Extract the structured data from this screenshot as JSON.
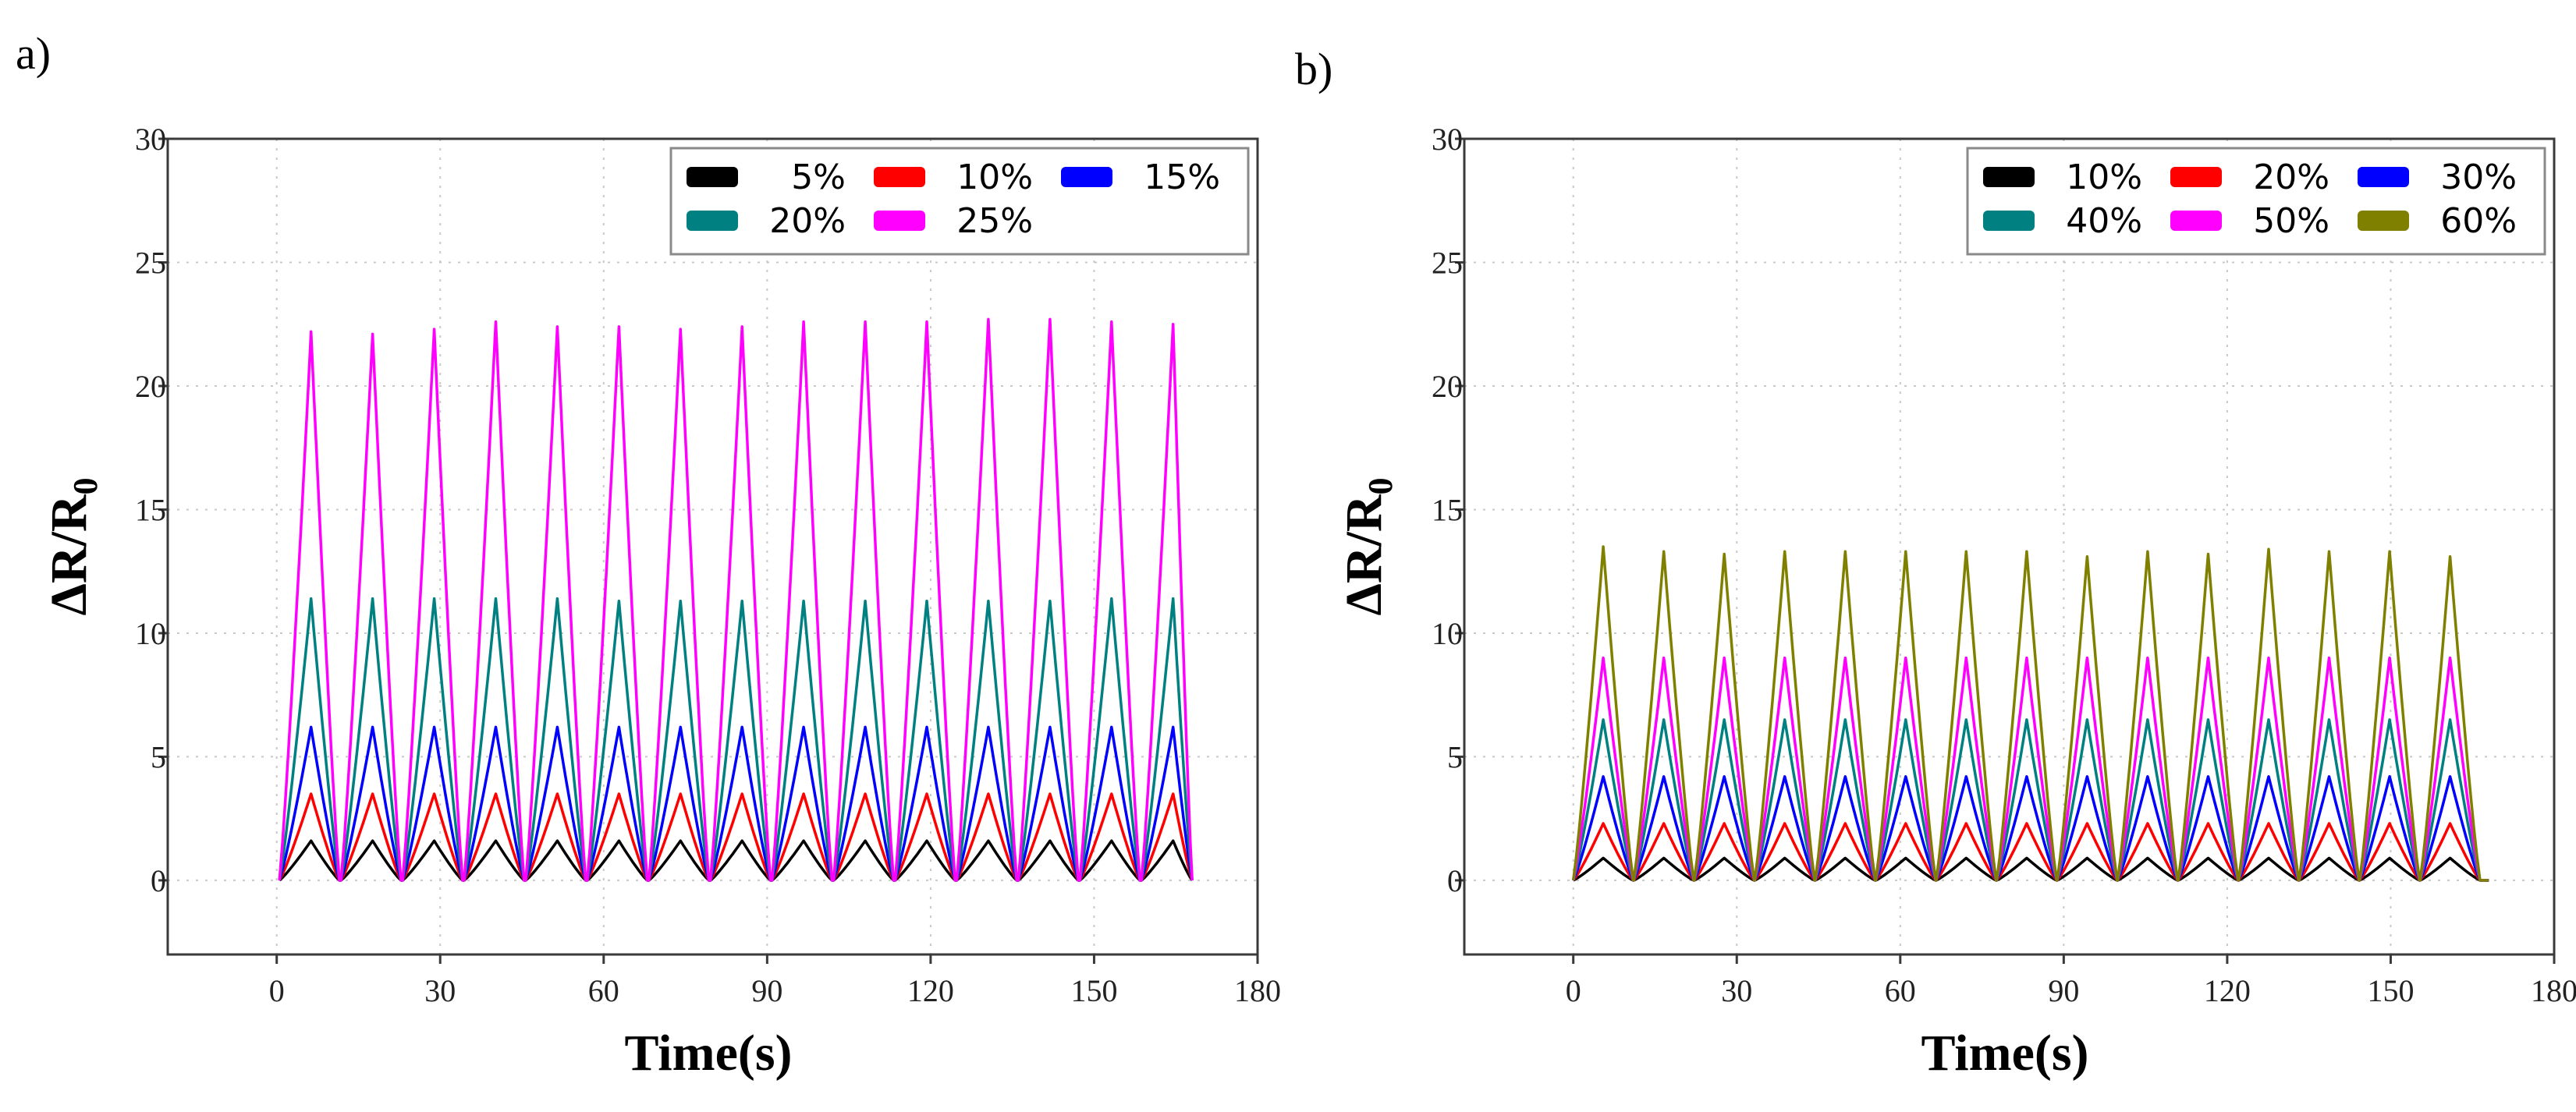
{
  "chart_data": [
    {
      "panel_label": "a)",
      "type": "line",
      "title": "",
      "xlabel": "Time(s)",
      "ylabel_main": "ΔR/R",
      "ylabel_sub": "0",
      "xlim": [
        -20,
        180
      ],
      "ylim": [
        -3,
        30
      ],
      "xticks": [
        0,
        30,
        60,
        90,
        120,
        150,
        180
      ],
      "yticks": [
        0,
        5,
        10,
        15,
        20,
        25,
        30
      ],
      "grid": true,
      "legend_position": "top-right",
      "legend_columns": 3,
      "cycle": {
        "start": 0.5,
        "period": 11.3,
        "count": 15,
        "peak_at": 5.8,
        "zero_until": 11.0,
        "end": 168
      },
      "series": [
        {
          "name": "5%",
          "color": "#000000",
          "peak": 1.6,
          "peaks": [
            1.6,
            1.6,
            1.6,
            1.6,
            1.6,
            1.6,
            1.6,
            1.6,
            1.6,
            1.6,
            1.6,
            1.6,
            1.6,
            1.6,
            1.6
          ]
        },
        {
          "name": "10%",
          "color": "#ff0000",
          "peak": 3.5,
          "peaks": [
            3.5,
            3.5,
            3.5,
            3.5,
            3.5,
            3.5,
            3.5,
            3.5,
            3.5,
            3.5,
            3.5,
            3.5,
            3.5,
            3.5,
            3.5
          ]
        },
        {
          "name": "15%",
          "color": "#0000ff",
          "peak": 6.2,
          "peaks": [
            6.2,
            6.2,
            6.2,
            6.2,
            6.2,
            6.2,
            6.2,
            6.2,
            6.2,
            6.2,
            6.2,
            6.2,
            6.2,
            6.2,
            6.2
          ]
        },
        {
          "name": "20%",
          "color": "#008080",
          "peak": 11.4,
          "peaks": [
            11.4,
            11.4,
            11.4,
            11.4,
            11.4,
            11.3,
            11.3,
            11.3,
            11.3,
            11.3,
            11.3,
            11.3,
            11.3,
            11.4,
            11.4
          ]
        },
        {
          "name": "25%",
          "color": "#ff00ff",
          "peak": 22.4,
          "peaks": [
            22.2,
            22.1,
            22.3,
            22.6,
            22.4,
            22.4,
            22.3,
            22.4,
            22.6,
            22.6,
            22.6,
            22.7,
            22.7,
            22.6,
            22.5
          ]
        }
      ]
    },
    {
      "panel_label": "b)",
      "type": "line",
      "title": "",
      "xlabel": "Time(s)",
      "ylabel_main": "ΔR/R",
      "ylabel_sub": "0",
      "xlim": [
        -20,
        180
      ],
      "ylim": [
        -3,
        30
      ],
      "xticks": [
        0,
        30,
        60,
        90,
        120,
        150,
        180
      ],
      "yticks": [
        0,
        5,
        10,
        15,
        20,
        25,
        30
      ],
      "grid": true,
      "legend_position": "top-right",
      "legend_columns": 3,
      "cycle": {
        "start": 0.0,
        "period": 11.1,
        "count": 15,
        "peak_at": 5.5,
        "zero_until": 11.0,
        "end": 168
      },
      "series": [
        {
          "name": "10%",
          "color": "#000000",
          "peak": 0.9,
          "peaks": [
            0.9,
            0.9,
            0.9,
            0.9,
            0.9,
            0.9,
            0.9,
            0.9,
            0.9,
            0.9,
            0.9,
            0.9,
            0.9,
            0.9,
            0.9
          ]
        },
        {
          "name": "20%",
          "color": "#ff0000",
          "peak": 2.3,
          "peaks": [
            2.3,
            2.3,
            2.3,
            2.3,
            2.3,
            2.3,
            2.3,
            2.3,
            2.3,
            2.3,
            2.3,
            2.3,
            2.3,
            2.3,
            2.3
          ]
        },
        {
          "name": "30%",
          "color": "#0000ff",
          "peak": 4.2,
          "peaks": [
            4.2,
            4.2,
            4.2,
            4.2,
            4.2,
            4.2,
            4.2,
            4.2,
            4.2,
            4.2,
            4.2,
            4.2,
            4.2,
            4.2,
            4.2
          ]
        },
        {
          "name": "40%",
          "color": "#008080",
          "peak": 6.5,
          "peaks": [
            6.5,
            6.5,
            6.5,
            6.5,
            6.5,
            6.5,
            6.5,
            6.5,
            6.5,
            6.5,
            6.5,
            6.5,
            6.5,
            6.5,
            6.5
          ]
        },
        {
          "name": "50%",
          "color": "#ff00ff",
          "peak": 9.0,
          "peaks": [
            9.0,
            9.0,
            9.0,
            9.0,
            9.0,
            9.0,
            9.0,
            9.0,
            9.0,
            9.0,
            9.0,
            9.0,
            9.0,
            9.0,
            9.0
          ]
        },
        {
          "name": "60%",
          "color": "#808000",
          "peak": 13.3,
          "peaks": [
            13.5,
            13.3,
            13.2,
            13.3,
            13.3,
            13.3,
            13.3,
            13.3,
            13.1,
            13.3,
            13.2,
            13.4,
            13.3,
            13.3,
            13.1
          ]
        }
      ]
    }
  ]
}
